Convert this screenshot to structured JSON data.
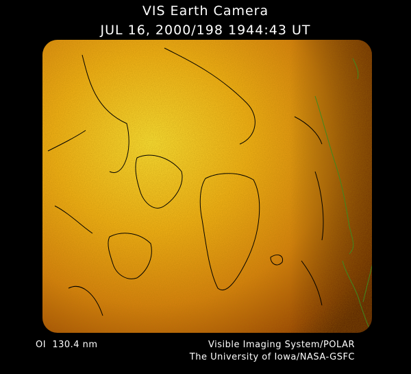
{
  "header": {
    "title": "VIS Earth Camera",
    "timestamp": "JUL 16, 2000/198 1944:43 UT"
  },
  "footer": {
    "wavelength": "OI  130.4 nm",
    "instrument": "Visible Imaging System/POLAR",
    "credit": "The University of Iowa/NASA-GSFC"
  }
}
